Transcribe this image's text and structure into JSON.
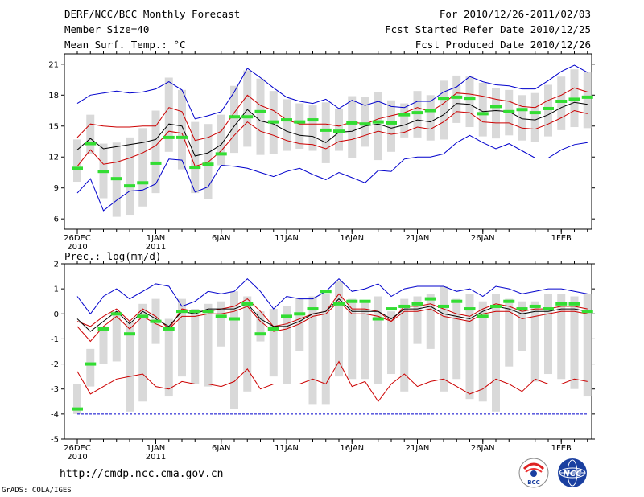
{
  "header": {
    "title": "DERF/NCC/BCC Monthly Forecast",
    "member_size": "Member Size=40",
    "variable": "Mean Surf. Temp.: °C",
    "period": "For 2010/12/26-2011/02/03",
    "refer_date": "Fcst Started Refer Date 2010/12/25",
    "produced_date": "Fcst Produced Date 2010/12/26"
  },
  "footer": {
    "url": "http://cmdp.ncc.cma.gov.cn",
    "credit": "GrADS: COLA/IGES",
    "logo_bcc": "BCC",
    "logo_ncc": "NCC"
  },
  "colors": {
    "max_line": "#0000cc",
    "min_line": "#0000cc",
    "spread_line": "#cc0000",
    "ensemble_mean": "#000000",
    "box": "#d9d9d9",
    "member_median": "#33dd33"
  },
  "x_tick_labels": [
    {
      "day": 0,
      "line1": "26DEC",
      "line2": "2010"
    },
    {
      "day": 6,
      "line1": "1JAN",
      "line2": "2011"
    },
    {
      "day": 11,
      "line1": "6JAN",
      "line2": ""
    },
    {
      "day": 16,
      "line1": "11JAN",
      "line2": ""
    },
    {
      "day": 21,
      "line1": "16JAN",
      "line2": ""
    },
    {
      "day": 26,
      "line1": "21JAN",
      "line2": ""
    },
    {
      "day": 31,
      "line1": "26JAN",
      "line2": ""
    },
    {
      "day": 37,
      "line1": "1FEB",
      "line2": ""
    }
  ],
  "chart_data": [
    {
      "type": "line",
      "title": "Mean Surf. Temp.: °C",
      "xlabel": "",
      "ylabel": "°C",
      "ylim": [
        5,
        22
      ],
      "yticks": [
        6,
        9,
        12,
        15,
        18,
        21
      ],
      "x_days": [
        0,
        1,
        2,
        3,
        4,
        5,
        6,
        7,
        8,
        9,
        10,
        11,
        12,
        13,
        14,
        15,
        16,
        17,
        18,
        19,
        20,
        21,
        22,
        23,
        24,
        25,
        26,
        27,
        28,
        29,
        30,
        31,
        32,
        33,
        34,
        35,
        36,
        37,
        38,
        39
      ],
      "series": [
        {
          "name": "max",
          "values": [
            17.2,
            18.0,
            18.2,
            18.4,
            18.2,
            18.3,
            18.6,
            19.3,
            18.5,
            15.7,
            16.0,
            16.4,
            18.3,
            20.6,
            19.7,
            18.7,
            17.8,
            17.4,
            17.2,
            17.6,
            16.7,
            17.5,
            17.0,
            17.4,
            16.9,
            16.8,
            17.4,
            17.4,
            18.3,
            18.8,
            19.8,
            19.3,
            19.0,
            18.9,
            18.6,
            18.6,
            19.4,
            20.3,
            20.9,
            20.2
          ]
        },
        {
          "name": "upper",
          "values": [
            13.9,
            15.2,
            15.0,
            14.9,
            14.9,
            15.0,
            15.0,
            16.8,
            16.4,
            13.6,
            13.9,
            14.5,
            16.3,
            18.0,
            17.0,
            16.5,
            15.6,
            15.2,
            15.2,
            15.2,
            15.0,
            15.4,
            15.2,
            15.7,
            16.0,
            16.3,
            16.8,
            16.4,
            17.2,
            18.2,
            18.1,
            17.9,
            17.6,
            17.4,
            16.9,
            16.8,
            17.5,
            18.0,
            18.7,
            18.3
          ]
        },
        {
          "name": "mean",
          "values": [
            12.7,
            13.8,
            12.8,
            13.0,
            13.2,
            13.4,
            13.7,
            15.2,
            15.0,
            12.1,
            12.4,
            13.2,
            15.0,
            16.6,
            15.5,
            15.2,
            14.5,
            14.1,
            14.0,
            13.4,
            14.4,
            14.5,
            15.0,
            15.2,
            14.8,
            15.1,
            15.6,
            15.4,
            16.1,
            17.2,
            17.1,
            16.4,
            16.5,
            16.4,
            15.7,
            15.6,
            16.1,
            16.8,
            17.3,
            17.1
          ]
        },
        {
          "name": "lower",
          "values": [
            11.1,
            12.7,
            11.3,
            11.5,
            11.9,
            12.4,
            13.1,
            14.5,
            14.3,
            11.1,
            11.5,
            12.6,
            14.1,
            15.4,
            14.5,
            14.1,
            13.6,
            13.3,
            13.2,
            12.8,
            13.5,
            13.7,
            14.1,
            14.5,
            14.2,
            14.4,
            14.9,
            14.7,
            15.4,
            16.4,
            16.3,
            15.4,
            15.3,
            15.3,
            14.8,
            14.7,
            15.2,
            15.8,
            16.5,
            16.2
          ]
        },
        {
          "name": "min",
          "values": [
            8.5,
            9.9,
            6.8,
            7.8,
            8.7,
            8.8,
            9.4,
            11.8,
            11.7,
            8.6,
            9.1,
            11.2,
            11.1,
            10.9,
            10.5,
            10.1,
            10.6,
            10.9,
            10.3,
            9.8,
            10.5,
            10.0,
            9.5,
            10.7,
            10.6,
            11.8,
            12.0,
            12.0,
            12.3,
            13.4,
            14.1,
            13.4,
            12.8,
            13.3,
            12.6,
            11.9,
            11.9,
            12.7,
            13.2,
            13.4
          ]
        }
      ],
      "boxes": {
        "low": [
          9.6,
          12.3,
          8.0,
          6.2,
          6.4,
          7.2,
          8.5,
          12.5,
          10.8,
          8.5,
          7.9,
          11.2,
          12.4,
          13.0,
          12.2,
          12.3,
          12.6,
          12.8,
          12.6,
          11.4,
          12.6,
          11.9,
          13.0,
          11.7,
          12.5,
          13.9,
          13.9,
          13.6,
          13.7,
          15.3,
          14.9,
          14.0,
          13.8,
          14.1,
          13.6,
          13.5,
          14.0,
          14.6,
          14.9,
          14.8
        ],
        "high": [
          13.7,
          16.1,
          13.3,
          13.4,
          13.9,
          14.8,
          16.5,
          19.7,
          18.5,
          15.4,
          15.2,
          16.1,
          18.9,
          20.4,
          19.6,
          18.4,
          17.6,
          17.2,
          17.0,
          17.3,
          16.7,
          17.9,
          17.8,
          18.3,
          17.5,
          17.2,
          18.4,
          18.0,
          19.4,
          19.9,
          19.8,
          19.2,
          18.7,
          18.5,
          18.0,
          18.2,
          19.0,
          19.8,
          20.5,
          20.2
        ]
      },
      "median_marks": [
        10.9,
        13.3,
        10.6,
        9.9,
        9.2,
        9.5,
        11.4,
        13.9,
        13.9,
        11.0,
        11.3,
        12.3,
        15.9,
        15.9,
        16.4,
        15.4,
        15.6,
        15.4,
        15.6,
        14.6,
        14.5,
        15.3,
        15.2,
        15.4,
        15.3,
        16.1,
        16.3,
        16.5,
        17.7,
        17.8,
        17.7,
        16.2,
        16.9,
        16.4,
        16.6,
        16.3,
        16.7,
        17.4,
        17.6,
        17.8
      ]
    },
    {
      "type": "line",
      "title": "Prec.: log(mm/d)",
      "xlabel": "",
      "ylabel": "log(mm/d)",
      "ylim": [
        -5,
        2
      ],
      "yticks": [
        -5,
        -4,
        -3,
        -2,
        -1,
        0,
        1,
        2
      ],
      "x_days": [
        0,
        1,
        2,
        3,
        4,
        5,
        6,
        7,
        8,
        9,
        10,
        11,
        12,
        13,
        14,
        15,
        16,
        17,
        18,
        19,
        20,
        21,
        22,
        23,
        24,
        25,
        26,
        27,
        28,
        29,
        30,
        31,
        32,
        33,
        34,
        35,
        36,
        37,
        38,
        39
      ],
      "series": [
        {
          "name": "max",
          "values": [
            0.7,
            0.0,
            0.7,
            1.0,
            0.6,
            0.9,
            1.2,
            1.1,
            0.3,
            0.5,
            0.9,
            0.8,
            0.9,
            1.4,
            0.9,
            0.2,
            0.7,
            0.6,
            0.6,
            0.9,
            1.4,
            0.9,
            1.0,
            1.2,
            0.7,
            1.0,
            1.1,
            1.1,
            1.1,
            0.9,
            1.0,
            0.7,
            1.1,
            1.0,
            0.8,
            0.9,
            1.0,
            1.0,
            0.9,
            0.8
          ]
        },
        {
          "name": "upper",
          "values": [
            -0.3,
            -0.5,
            -0.1,
            0.2,
            -0.3,
            0.2,
            -0.1,
            -0.6,
            0.2,
            0.1,
            0.1,
            0.2,
            0.3,
            0.6,
            0.1,
            -0.5,
            -0.4,
            -0.2,
            0.0,
            0.1,
            0.8,
            0.2,
            0.2,
            0.1,
            -0.3,
            0.3,
            0.3,
            0.4,
            0.2,
            0.0,
            -0.1,
            0.2,
            0.4,
            0.3,
            0.1,
            0.2,
            0.2,
            0.3,
            0.3,
            0.2
          ]
        },
        {
          "name": "mean",
          "values": [
            -0.2,
            -0.7,
            -0.3,
            0.1,
            -0.4,
            0.1,
            -0.2,
            -0.5,
            0.1,
            0.0,
            0.2,
            0.2,
            0.2,
            0.4,
            -0.2,
            -0.5,
            -0.5,
            -0.3,
            0.0,
            0.1,
            0.6,
            0.1,
            0.1,
            0.1,
            -0.2,
            0.2,
            0.2,
            0.3,
            0.0,
            -0.1,
            -0.2,
            0.1,
            0.3,
            0.2,
            0.0,
            0.1,
            0.1,
            0.2,
            0.2,
            0.1
          ]
        },
        {
          "name": "lower",
          "values": [
            -0.5,
            -1.1,
            -0.5,
            -0.1,
            -0.6,
            -0.1,
            -0.4,
            -0.6,
            -0.1,
            -0.1,
            0.0,
            0.0,
            0.1,
            0.3,
            -0.3,
            -0.7,
            -0.6,
            -0.4,
            -0.1,
            0.0,
            0.5,
            0.0,
            0.0,
            -0.1,
            -0.3,
            0.1,
            0.1,
            0.2,
            -0.1,
            -0.2,
            -0.3,
            0.0,
            0.1,
            0.1,
            -0.2,
            -0.1,
            0.0,
            0.1,
            0.1,
            0.0
          ]
        },
        {
          "name": "lower_spread",
          "values": [
            -2.3,
            -3.2,
            -2.9,
            -2.6,
            -2.5,
            -2.4,
            -2.9,
            -3.0,
            -2.7,
            -2.8,
            -2.8,
            -2.9,
            -2.7,
            -2.2,
            -3.0,
            -2.8,
            -2.8,
            -2.8,
            -2.6,
            -2.8,
            -1.9,
            -2.9,
            -2.7,
            -3.5,
            -2.8,
            -2.4,
            -2.9,
            -2.7,
            -2.6,
            -2.9,
            -3.2,
            -3.0,
            -2.6,
            -2.8,
            -3.1,
            -2.6,
            -2.8,
            -2.8,
            -2.6,
            -2.7
          ]
        },
        {
          "name": "min",
          "values": [
            -4.0,
            -4.0,
            -4.0,
            -4.0,
            -4.0,
            -4.0,
            -4.0,
            -4.0,
            -4.0,
            -4.0,
            -4.0,
            -4.0,
            -4.0,
            -4.0,
            -4.0,
            -4.0,
            -4.0,
            -4.0,
            -4.0,
            -4.0,
            -4.0,
            -4.0,
            -4.0,
            -4.0,
            -4.0,
            -4.0,
            -4.0,
            -4.0,
            -4.0,
            -4.0,
            -4.0,
            -4.0,
            -4.0,
            -4.0,
            -4.0,
            -4.0,
            -4.0,
            -4.0,
            -4.0,
            -4.0
          ]
        }
      ],
      "boxes": {
        "low": [
          -4.0,
          -2.9,
          -2.0,
          -1.9,
          -3.9,
          -3.5,
          -1.2,
          -3.3,
          -2.5,
          -2.8,
          -2.9,
          -1.3,
          -3.8,
          -3.1,
          -1.1,
          -2.5,
          -2.8,
          -1.5,
          -3.6,
          -3.6,
          -2.5,
          -2.6,
          -2.6,
          -2.8,
          -2.4,
          -3.1,
          -1.2,
          -1.4,
          -3.1,
          -2.6,
          -3.4,
          -3.5,
          -3.9,
          -2.1,
          -1.5,
          -2.7,
          -2.4,
          -2.6,
          -3.0,
          -3.3
        ],
        "high": [
          -2.8,
          -1.4,
          -0.5,
          0.1,
          -0.3,
          0.4,
          0.6,
          -0.2,
          0.6,
          0.2,
          0.4,
          0.5,
          0.9,
          0.7,
          0.1,
          0.2,
          0.3,
          0.6,
          0.7,
          0.8,
          1.3,
          0.6,
          0.5,
          0.7,
          0.1,
          0.6,
          0.7,
          0.8,
          1.1,
          0.6,
          0.8,
          0.5,
          0.8,
          0.6,
          0.5,
          0.5,
          0.8,
          0.8,
          0.7,
          0.8
        ]
      },
      "median_marks": [
        -3.8,
        -2.0,
        -0.6,
        0.0,
        -0.8,
        -0.1,
        -0.3,
        -0.6,
        0.1,
        0.1,
        0.1,
        -0.1,
        -0.2,
        0.4,
        -0.8,
        -0.6,
        -0.1,
        0.0,
        0.2,
        0.9,
        0.4,
        0.5,
        0.5,
        -0.2,
        0.2,
        0.3,
        0.4,
        0.6,
        0.3,
        0.5,
        0.2,
        -0.1,
        0.3,
        0.5,
        0.2,
        0.3,
        0.2,
        0.4,
        0.4,
        0.1
      ]
    }
  ]
}
